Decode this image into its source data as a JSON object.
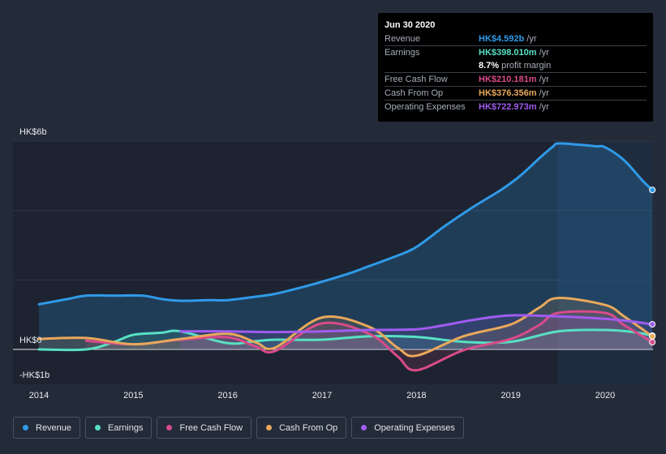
{
  "chart_data": {
    "type": "area",
    "yAxis": {
      "top_label": "HK$6b",
      "zero_label": "HK$0",
      "bottom_label": "-HK$1b",
      "ylim": [
        -1,
        6
      ]
    },
    "xAxis": {
      "tick_labels": [
        "2014",
        "2015",
        "2016",
        "2017",
        "2018",
        "2019",
        "2020"
      ],
      "xlim": [
        2014,
        2020.5
      ]
    },
    "highlight_from": 2019.5,
    "series": [
      {
        "name": "Revenue",
        "color": "#2f9ae8",
        "fill": true,
        "x": [
          2014.0,
          2014.3,
          2014.5,
          2014.8,
          2015.1,
          2015.3,
          2015.5,
          2015.8,
          2016.0,
          2016.3,
          2016.5,
          2016.8,
          2017.0,
          2017.3,
          2017.5,
          2017.8,
          2018.0,
          2018.3,
          2018.6,
          2018.9,
          2019.1,
          2019.3,
          2019.45,
          2019.5,
          2019.7,
          2019.9,
          2020.0,
          2020.2,
          2020.4,
          2020.5
        ],
        "values": [
          1.3,
          1.45,
          1.55,
          1.55,
          1.55,
          1.45,
          1.4,
          1.42,
          1.42,
          1.52,
          1.6,
          1.8,
          1.95,
          2.2,
          2.4,
          2.7,
          2.95,
          3.55,
          4.1,
          4.6,
          5.0,
          5.5,
          5.85,
          5.93,
          5.9,
          5.85,
          5.82,
          5.45,
          4.85,
          4.592
        ]
      },
      {
        "name": "Earnings",
        "color": "#58e0c4",
        "fill": true,
        "x": [
          2014.0,
          2014.5,
          2014.8,
          2015.0,
          2015.3,
          2015.5,
          2016.0,
          2016.3,
          2016.5,
          2017.0,
          2017.5,
          2018.0,
          2018.5,
          2019.0,
          2019.5,
          2020.0,
          2020.3,
          2020.5
        ],
        "values": [
          0.0,
          0.0,
          0.22,
          0.42,
          0.48,
          0.52,
          0.18,
          0.24,
          0.28,
          0.28,
          0.38,
          0.36,
          0.22,
          0.22,
          0.52,
          0.56,
          0.5,
          0.398
        ]
      },
      {
        "name": "Free Cash Flow",
        "color": "#d84b8a",
        "fill": true,
        "x": [
          2014.5,
          2015.0,
          2015.5,
          2016.0,
          2016.3,
          2016.5,
          2017.0,
          2017.5,
          2017.8,
          2018.0,
          2018.5,
          2019.0,
          2019.3,
          2019.5,
          2020.0,
          2020.2,
          2020.5
        ],
        "values": [
          0.25,
          0.15,
          0.28,
          0.35,
          0.08,
          -0.05,
          0.75,
          0.45,
          -0.2,
          -0.6,
          -0.02,
          0.3,
          0.7,
          1.05,
          1.05,
          0.7,
          0.21
        ]
      },
      {
        "name": "Cash From Op",
        "color": "#e8a85b",
        "fill": true,
        "x": [
          2014.0,
          2014.5,
          2015.0,
          2015.5,
          2016.0,
          2016.3,
          2016.5,
          2017.0,
          2017.5,
          2017.8,
          2018.0,
          2018.5,
          2019.0,
          2019.3,
          2019.5,
          2020.0,
          2020.2,
          2020.5
        ],
        "values": [
          0.3,
          0.33,
          0.15,
          0.3,
          0.45,
          0.2,
          0.05,
          0.92,
          0.65,
          0.05,
          -0.18,
          0.38,
          0.72,
          1.2,
          1.48,
          1.28,
          0.95,
          0.376
        ]
      },
      {
        "name": "Operating Expenses",
        "color": "#a05cf0",
        "fill": true,
        "x": [
          2015.5,
          2016.0,
          2016.5,
          2017.0,
          2017.5,
          2018.0,
          2018.3,
          2018.6,
          2019.0,
          2019.5,
          2020.0,
          2020.3,
          2020.5
        ],
        "values": [
          0.52,
          0.52,
          0.5,
          0.52,
          0.56,
          0.58,
          0.7,
          0.85,
          0.98,
          0.95,
          0.88,
          0.8,
          0.723
        ]
      }
    ]
  },
  "tooltip": {
    "date": "Jun 30 2020",
    "rows": [
      {
        "key": "Revenue",
        "value": "HK$4.592b",
        "unit": "/yr",
        "color": "#2f9ae8"
      },
      {
        "key": "Earnings",
        "value": "HK$398.010m",
        "unit": "/yr",
        "color": "#58e0c4"
      },
      {
        "key": "",
        "value": "8.7%",
        "unit": "profit margin",
        "color": "#ffffff"
      },
      {
        "key": "Free Cash Flow",
        "value": "HK$210.181m",
        "unit": "/yr",
        "color": "#d84b8a"
      },
      {
        "key": "Cash From Op",
        "value": "HK$376.356m",
        "unit": "/yr",
        "color": "#e8a85b"
      },
      {
        "key": "Operating Expenses",
        "value": "HK$722.973m",
        "unit": "/yr",
        "color": "#a05cf0"
      }
    ]
  },
  "legend": [
    {
      "label": "Revenue",
      "color": "#2f9ae8"
    },
    {
      "label": "Earnings",
      "color": "#58e0c4"
    },
    {
      "label": "Free Cash Flow",
      "color": "#d84b8a"
    },
    {
      "label": "Cash From Op",
      "color": "#e8a85b"
    },
    {
      "label": "Operating Expenses",
      "color": "#a05cf0"
    }
  ]
}
